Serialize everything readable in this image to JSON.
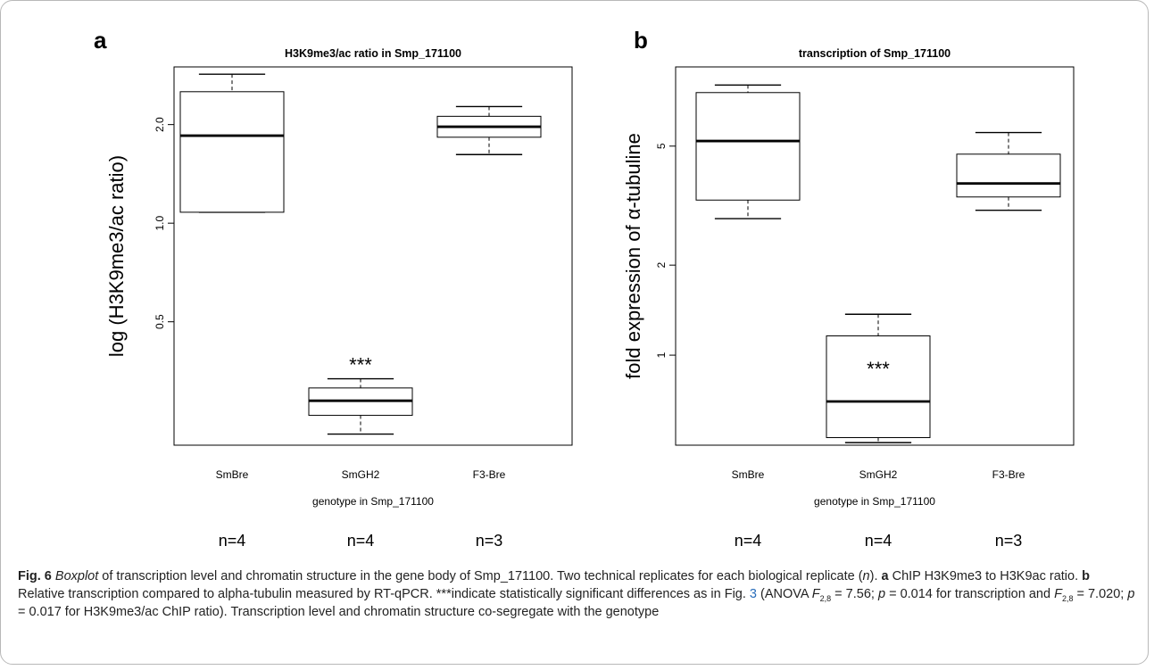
{
  "panels": {
    "a": {
      "letter": "a"
    },
    "b": {
      "letter": "b"
    }
  },
  "chart_data": [
    {
      "type": "box",
      "panel": "a",
      "title": "H3K9me3/ac ratio in Smp_171100",
      "xlabel": "genotype in Smp_171100",
      "ylabel": "log (H3K9me3/ac ratio)",
      "y_scale": "log",
      "ylim": [
        0.21,
        3.0
      ],
      "yticks": [
        0.5,
        1.0,
        2.0
      ],
      "ytick_labels": [
        "0.5",
        "1.0",
        "2.0"
      ],
      "categories": [
        "SmBre",
        "SmGH2",
        "F3-Bre"
      ],
      "counts": [
        "n=4",
        "n=4",
        "n=3"
      ],
      "boxes": [
        {
          "category": "SmBre",
          "min": 1.08,
          "q1": 1.08,
          "median": 1.85,
          "q3": 2.52,
          "max": 2.85
        },
        {
          "category": "SmGH2",
          "min": 0.227,
          "q1": 0.259,
          "median": 0.287,
          "q3": 0.314,
          "max": 0.335
        },
        {
          "category": "F3-Bre",
          "min": 1.62,
          "q1": 1.83,
          "median": 1.97,
          "q3": 2.12,
          "max": 2.27
        }
      ],
      "annotations": [
        {
          "category": "SmGH2",
          "text": "***"
        }
      ],
      "grid": false,
      "legend": "none"
    },
    {
      "type": "box",
      "panel": "b",
      "title": "transcription of Smp_171100",
      "xlabel": "genotype in Smp_171100",
      "ylabel": "fold expression of α-tubuline",
      "y_scale": "log",
      "ylim": [
        0.5,
        9.2
      ],
      "yticks": [
        1,
        2,
        5
      ],
      "ytick_labels": [
        "1",
        "2",
        "5"
      ],
      "categories": [
        "SmBre",
        "SmGH2",
        "F3-Bre"
      ],
      "counts": [
        "n=4",
        "n=4",
        "n=3"
      ],
      "boxes": [
        {
          "category": "SmBre",
          "min": 2.86,
          "q1": 3.3,
          "median": 5.2,
          "q3": 7.55,
          "max": 8.0
        },
        {
          "category": "SmGH2",
          "min": 0.51,
          "q1": 0.53,
          "median": 0.7,
          "q3": 1.16,
          "max": 1.37
        },
        {
          "category": "F3-Bre",
          "min": 3.05,
          "q1": 3.38,
          "median": 3.75,
          "q3": 4.7,
          "max": 5.55
        }
      ],
      "annotations": [
        {
          "category": "SmGH2",
          "text": "***"
        }
      ],
      "grid": false,
      "legend": "none"
    }
  ],
  "caption": {
    "fig_label": "Fig. 6",
    "boxplot_word": "Boxplot",
    "text1": " of transcription level and chromatin structure in the gene body of Smp_171100. Two technical replicates for each biological replicate (",
    "n_symbol": "n",
    "text2": "). ",
    "a_label": "a",
    "a_text": " ChIP H3K9me3 to H3K9ac ratio. ",
    "b_label": "b",
    "b_text": " Relative transcription compared to alpha-tubulin measured by RT-qPCR. ***indicate statistically significant differences as in Fig. ",
    "fig_ref": "3",
    "text3": " (ANOVA ",
    "F_symbol": "F",
    "F_sub": "2,8",
    "stat1": " = 7.56; ",
    "p_symbol": "p",
    "stat2": " = 0.014 for transcription and ",
    "stat3": " = 7.020; ",
    "stat4": " = 0.017 for H3K9me3/ac ChIP ratio). Transcription level and chromatin structure co-segregate with the genotype"
  }
}
